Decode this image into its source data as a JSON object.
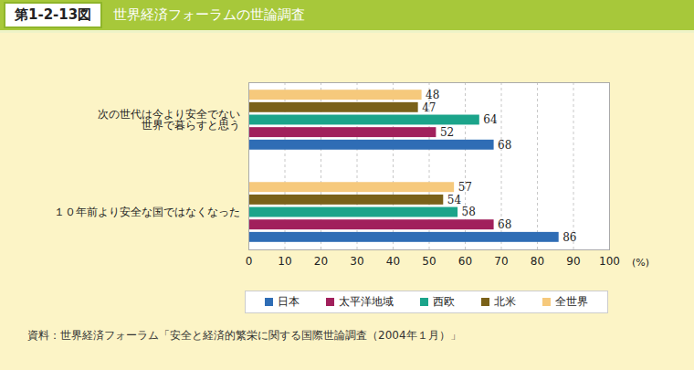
{
  "chart_data": {
    "type": "bar",
    "figure_label": "第1-2-13図",
    "title": "世界経済フォーラムの世論調査",
    "source": "資料：世界経済フォーラム「安全と経済的繁栄に関する国際世論調査（2004年１月）」",
    "orientation": "horizontal",
    "categories": [
      "次の世代は今より安全でない\n世界で暮らすと思う",
      "１０年前より安全な国ではなくなった"
    ],
    "series": [
      {
        "name": "日本",
        "color": "#2f6db5",
        "values": [
          68,
          86
        ]
      },
      {
        "name": "太平洋地域",
        "color": "#a1205c",
        "values": [
          52,
          68
        ]
      },
      {
        "name": "西欧",
        "color": "#1ba48a",
        "values": [
          64,
          58
        ]
      },
      {
        "name": "北米",
        "color": "#7a6119",
        "values": [
          47,
          54
        ]
      },
      {
        "name": "全世界",
        "color": "#f6c97c",
        "values": [
          48,
          57
        ]
      }
    ],
    "xlabel": "(%)",
    "xlim": [
      0,
      100
    ],
    "xticks": [
      0,
      10,
      20,
      30,
      40,
      50,
      60,
      70,
      80,
      90,
      100
    ],
    "grid": true,
    "data_labels": true,
    "legend": "bottom"
  }
}
